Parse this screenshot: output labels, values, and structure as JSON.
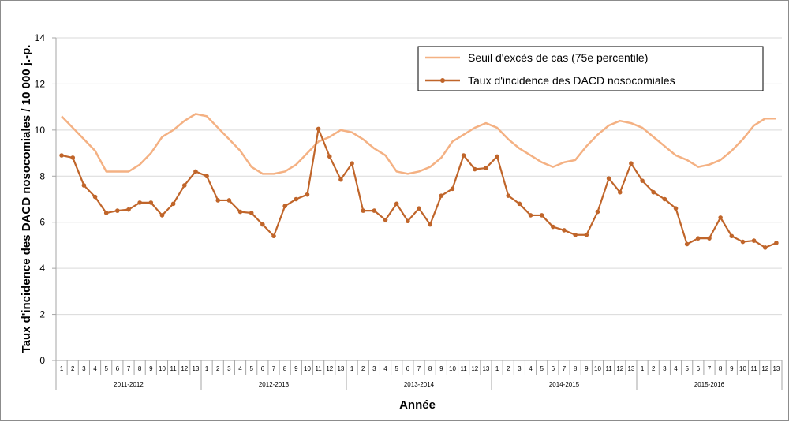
{
  "chart_data": {
    "type": "line",
    "xlabel": "Année",
    "ylabel": "Taux d'incidence des DACD nosocomiales / 10 000 j.-p.",
    "ylim": [
      0,
      14
    ],
    "yticks": [
      0,
      2,
      4,
      6,
      8,
      10,
      12,
      14
    ],
    "grid": "horizontal",
    "legend_position": "top-right",
    "periods": [
      "1",
      "2",
      "3",
      "4",
      "5",
      "6",
      "7",
      "8",
      "9",
      "10",
      "11",
      "12",
      "13"
    ],
    "years": [
      "2011-2012",
      "2012-2013",
      "2013-2014",
      "2014-2015",
      "2015-2016"
    ],
    "series": [
      {
        "name": "Seuil d'excès de cas (75e percentile)",
        "color": "#f4b183",
        "markers": false,
        "values": [
          10.6,
          10.1,
          9.6,
          9.1,
          8.2,
          8.2,
          8.2,
          8.5,
          9.0,
          9.7,
          10.0,
          10.4,
          10.7,
          10.6,
          10.1,
          9.6,
          9.1,
          8.4,
          8.1,
          8.1,
          8.2,
          8.5,
          9.0,
          9.5,
          9.7,
          10.0,
          9.9,
          9.6,
          9.2,
          8.9,
          8.2,
          8.1,
          8.2,
          8.4,
          8.8,
          9.5,
          9.8,
          10.1,
          10.3,
          10.1,
          9.6,
          9.2,
          8.9,
          8.6,
          8.4,
          8.6,
          8.7,
          9.3,
          9.8,
          10.2,
          10.4,
          10.3,
          10.1,
          9.7,
          9.3,
          8.9,
          8.7,
          8.4,
          8.5,
          8.7,
          9.1,
          9.6,
          10.2,
          10.5,
          10.5
        ]
      },
      {
        "name": "Taux d'incidence des DACD nosocomiales",
        "color": "#c0652a",
        "markers": true,
        "values": [
          8.9,
          8.8,
          7.6,
          7.1,
          6.4,
          6.5,
          6.55,
          6.85,
          6.85,
          6.3,
          6.8,
          7.6,
          8.2,
          8.0,
          6.95,
          6.95,
          6.45,
          6.4,
          5.9,
          5.4,
          6.7,
          7.0,
          7.2,
          10.05,
          8.85,
          7.85,
          8.55,
          6.5,
          6.5,
          6.1,
          6.8,
          6.05,
          6.6,
          5.9,
          7.15,
          7.45,
          8.9,
          8.3,
          8.35,
          8.85,
          7.15,
          6.8,
          6.3,
          6.3,
          5.8,
          5.65,
          5.45,
          5.45,
          6.45,
          7.9,
          7.3,
          8.55,
          7.8,
          7.3,
          7.0,
          6.6,
          5.05,
          5.3,
          5.3,
          6.2,
          5.4,
          5.15,
          5.2,
          4.9,
          5.1
        ]
      }
    ]
  }
}
